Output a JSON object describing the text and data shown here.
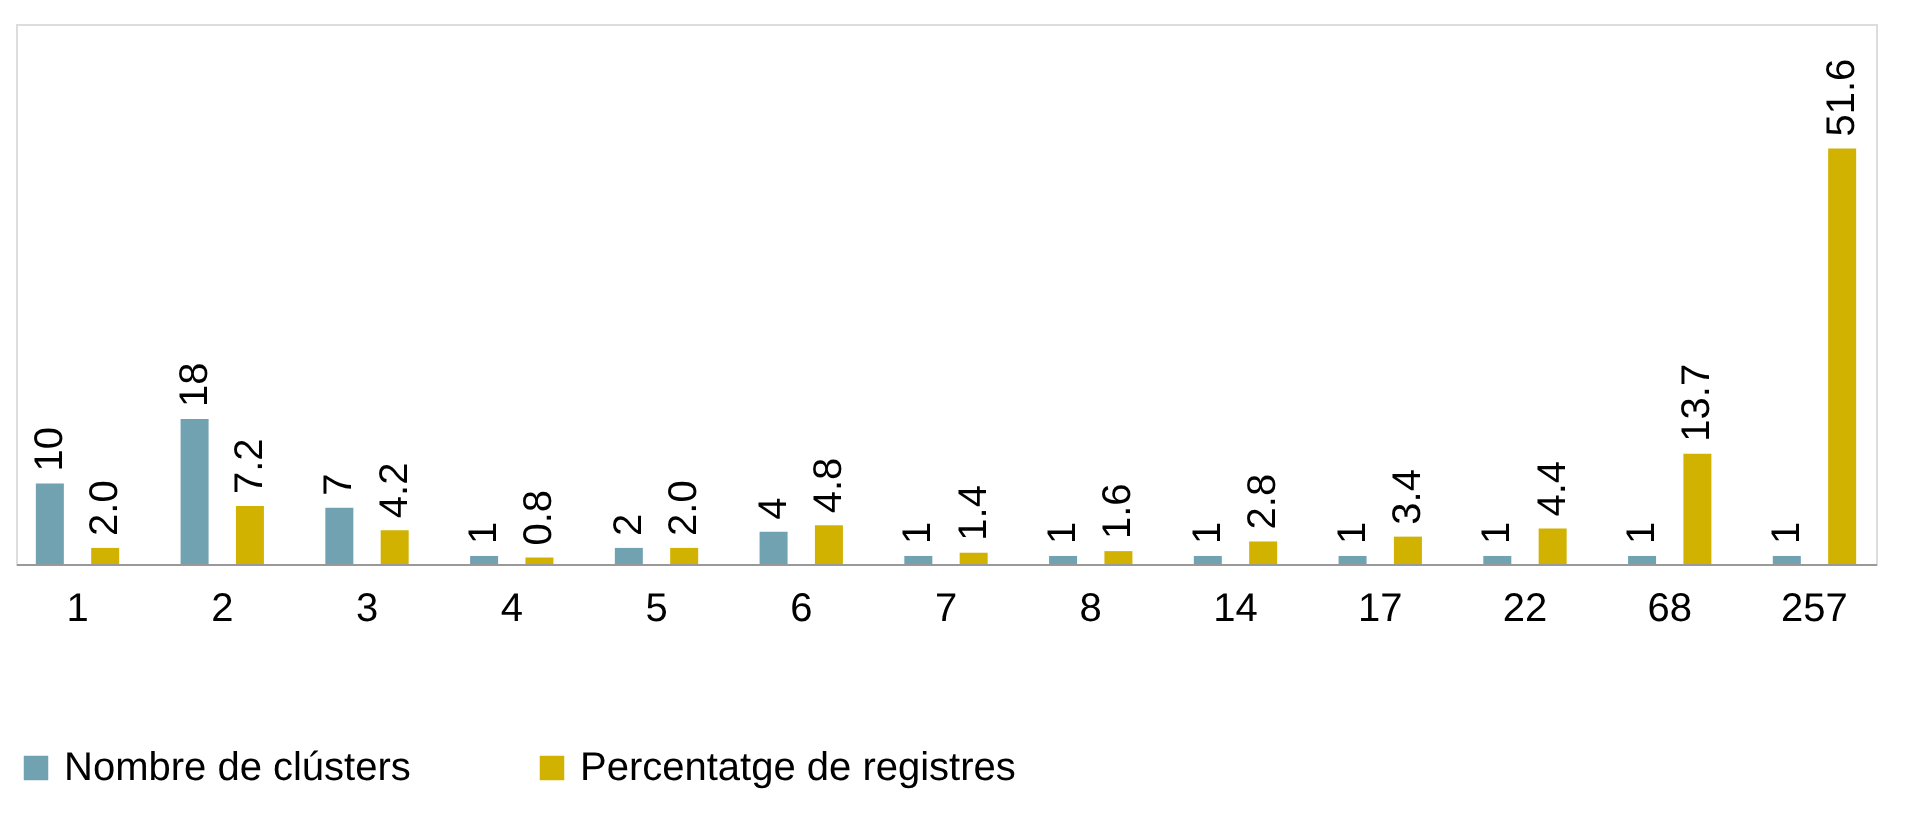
{
  "chart_data": {
    "type": "bar",
    "categories": [
      "1",
      "2",
      "3",
      "4",
      "5",
      "6",
      "7",
      "8",
      "14",
      "17",
      "22",
      "68",
      "257"
    ],
    "series": [
      {
        "name": "Nombre de clústers",
        "color": "#70a2b2",
        "values": [
          10,
          18,
          7,
          1,
          2,
          4,
          1,
          1,
          1,
          1,
          1,
          1,
          1
        ],
        "value_labels": [
          "10",
          "18",
          "7",
          "1",
          "2",
          "4",
          "1",
          "1",
          "1",
          "1",
          "1",
          "1",
          "1"
        ]
      },
      {
        "name": "Percentatge de registres",
        "color": "#d2b200",
        "values": [
          2.0,
          7.2,
          4.2,
          0.8,
          2.0,
          4.8,
          1.4,
          1.6,
          2.8,
          3.4,
          4.4,
          13.7,
          51.6
        ],
        "value_labels": [
          "2.0",
          "7.2",
          "4.2",
          "0.8",
          "2.0",
          "4.8",
          "1.4",
          "1.6",
          "2.8",
          "3.4",
          "4.4",
          "13.7",
          "51.6"
        ]
      }
    ],
    "legend": "bottom",
    "grid": false
  }
}
